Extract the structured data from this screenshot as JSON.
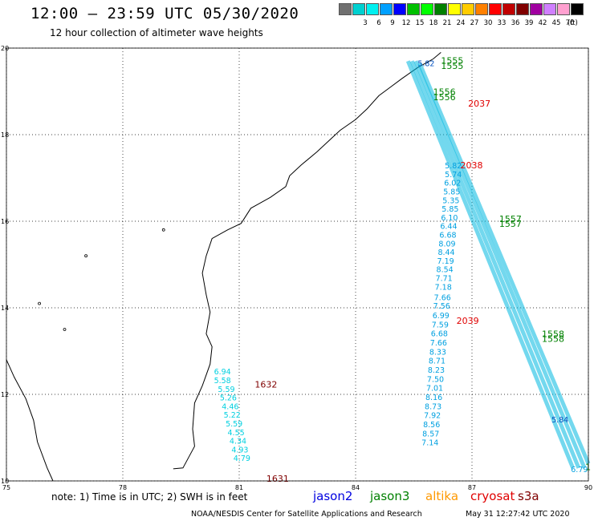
{
  "header": {
    "title": "12:00 — 23:59 UTC 05/30/2020",
    "subtitle": "12 hour collection of altimeter wave heights"
  },
  "scale": {
    "unit": "(ft)",
    "bins": [
      {
        "label": "",
        "color": "#707070"
      },
      {
        "label": "3",
        "color": "#00d0d0"
      },
      {
        "label": "6",
        "color": "#00f0f0"
      },
      {
        "label": "9",
        "color": "#00a0ff"
      },
      {
        "label": "12",
        "color": "#0000ff"
      },
      {
        "label": "15",
        "color": "#00c000"
      },
      {
        "label": "18",
        "color": "#00ff00"
      },
      {
        "label": "21",
        "color": "#008000"
      },
      {
        "label": "24",
        "color": "#ffff00"
      },
      {
        "label": "27",
        "color": "#ffcc00"
      },
      {
        "label": "30",
        "color": "#ff8000"
      },
      {
        "label": "33",
        "color": "#ff0000"
      },
      {
        "label": "36",
        "color": "#c00000"
      },
      {
        "label": "39",
        "color": "#800000"
      },
      {
        "label": "42",
        "color": "#a000a0"
      },
      {
        "label": "45",
        "color": "#d080ff"
      },
      {
        "label": "70",
        "color": "#ffa0d0"
      },
      {
        "label": "",
        "color": "#000000"
      }
    ]
  },
  "map": {
    "lon_range": [
      75,
      90
    ],
    "lat_range": [
      10,
      20
    ],
    "lon_ticks": [
      "75",
      "78",
      "81",
      "84",
      "87",
      "90"
    ],
    "lat_ticks": [
      "20",
      "18",
      "16",
      "14",
      "12",
      "10"
    ],
    "grid": true
  },
  "track_labels": [
    {
      "text": "1555",
      "lon": 86.2,
      "lat": 19.64,
      "color": "#008000"
    },
    {
      "text": "1555",
      "lon": 86.2,
      "lat": 19.52,
      "color": "#008000"
    },
    {
      "text": "1556",
      "lon": 86.0,
      "lat": 18.92,
      "color": "#008000"
    },
    {
      "text": "1556",
      "lon": 86.0,
      "lat": 18.8,
      "color": "#008000"
    },
    {
      "text": "2037",
      "lon": 86.9,
      "lat": 18.65,
      "color": "#e00000"
    },
    {
      "text": "2038",
      "lon": 86.7,
      "lat": 17.22,
      "color": "#e00000"
    },
    {
      "text": "1557",
      "lon": 87.7,
      "lat": 15.98,
      "color": "#008000"
    },
    {
      "text": "1557",
      "lon": 87.7,
      "lat": 15.87,
      "color": "#008000"
    },
    {
      "text": "2039",
      "lon": 86.6,
      "lat": 13.63,
      "color": "#e00000"
    },
    {
      "text": "1558",
      "lon": 88.8,
      "lat": 13.32,
      "color": "#008000"
    },
    {
      "text": "1558",
      "lon": 88.8,
      "lat": 13.21,
      "color": "#008000"
    },
    {
      "text": "1632",
      "lon": 81.4,
      "lat": 12.16,
      "color": "#800000"
    },
    {
      "text": "1631",
      "lon": 81.7,
      "lat": 9.98,
      "color": "#800000"
    },
    {
      "text": "1",
      "lon": 89.92,
      "lat": 10.25,
      "color": "#008000"
    }
  ],
  "swh_values": [
    {
      "text": "6.94",
      "lon": 80.35,
      "lat": 12.46,
      "color": "#00d0e0"
    },
    {
      "text": "5.58",
      "lon": 80.35,
      "lat": 12.26,
      "color": "#00d0e0"
    },
    {
      "text": "5.59",
      "lon": 80.45,
      "lat": 12.06,
      "color": "#00d0e0"
    },
    {
      "text": "5.26",
      "lon": 80.5,
      "lat": 11.86,
      "color": "#00d0e0"
    },
    {
      "text": "4.46",
      "lon": 80.55,
      "lat": 11.66,
      "color": "#00d0e0"
    },
    {
      "text": "5.22",
      "lon": 80.6,
      "lat": 11.46,
      "color": "#00d0e0"
    },
    {
      "text": "5.59",
      "lon": 80.65,
      "lat": 11.26,
      "color": "#00d0e0"
    },
    {
      "text": "4.55",
      "lon": 80.7,
      "lat": 11.06,
      "color": "#00d0e0"
    },
    {
      "text": "4.34",
      "lon": 80.75,
      "lat": 10.86,
      "color": "#00d0e0"
    },
    {
      "text": "4.93",
      "lon": 80.8,
      "lat": 10.66,
      "color": "#00d0e0"
    },
    {
      "text": "4.79",
      "lon": 80.85,
      "lat": 10.46,
      "color": "#00d0e0"
    },
    {
      "text": "5.82",
      "lon": 86.3,
      "lat": 17.22,
      "color": "#00a0e0"
    },
    {
      "text": "5.74",
      "lon": 86.3,
      "lat": 17.02,
      "color": "#00a0e0"
    },
    {
      "text": "6.02",
      "lon": 86.28,
      "lat": 16.82,
      "color": "#00a0e0"
    },
    {
      "text": "5.85",
      "lon": 86.26,
      "lat": 16.62,
      "color": "#00a0e0"
    },
    {
      "text": "5.35",
      "lon": 86.24,
      "lat": 16.42,
      "color": "#00a0e0"
    },
    {
      "text": "5.85",
      "lon": 86.22,
      "lat": 16.22,
      "color": "#00a0e0"
    },
    {
      "text": "6.10",
      "lon": 86.2,
      "lat": 16.02,
      "color": "#00a0e0"
    },
    {
      "text": "6.44",
      "lon": 86.18,
      "lat": 15.82,
      "color": "#00a0e0"
    },
    {
      "text": "6.68",
      "lon": 86.16,
      "lat": 15.62,
      "color": "#00a0e0"
    },
    {
      "text": "8.09",
      "lon": 86.14,
      "lat": 15.42,
      "color": "#00a0e0"
    },
    {
      "text": "8.44",
      "lon": 86.12,
      "lat": 15.22,
      "color": "#00a0e0"
    },
    {
      "text": "7.19",
      "lon": 86.1,
      "lat": 15.02,
      "color": "#00a0e0"
    },
    {
      "text": "8.54",
      "lon": 86.08,
      "lat": 14.82,
      "color": "#00a0e0"
    },
    {
      "text": "7.71",
      "lon": 86.06,
      "lat": 14.62,
      "color": "#00a0e0"
    },
    {
      "text": "7.18",
      "lon": 86.04,
      "lat": 14.42,
      "color": "#00a0e0"
    },
    {
      "text": "7.66",
      "lon": 86.02,
      "lat": 14.18,
      "color": "#00a0e0"
    },
    {
      "text": "7.56",
      "lon": 86.0,
      "lat": 13.98,
      "color": "#00a0e0"
    },
    {
      "text": "6.99",
      "lon": 85.98,
      "lat": 13.76,
      "color": "#00a0e0"
    },
    {
      "text": "7.59",
      "lon": 85.96,
      "lat": 13.55,
      "color": "#00a0e0"
    },
    {
      "text": "6.68",
      "lon": 85.94,
      "lat": 13.34,
      "color": "#00a0e0"
    },
    {
      "text": "7.66",
      "lon": 85.92,
      "lat": 13.13,
      "color": "#00a0e0"
    },
    {
      "text": "8.33",
      "lon": 85.9,
      "lat": 12.92,
      "color": "#00a0e0"
    },
    {
      "text": "8.71",
      "lon": 85.88,
      "lat": 12.71,
      "color": "#00a0e0"
    },
    {
      "text": "8.23",
      "lon": 85.86,
      "lat": 12.5,
      "color": "#00a0e0"
    },
    {
      "text": "7.50",
      "lon": 85.84,
      "lat": 12.29,
      "color": "#00a0e0"
    },
    {
      "text": "7.01",
      "lon": 85.82,
      "lat": 12.08,
      "color": "#00a0e0"
    },
    {
      "text": "8.16",
      "lon": 85.8,
      "lat": 11.87,
      "color": "#00a0e0"
    },
    {
      "text": "8.73",
      "lon": 85.78,
      "lat": 11.66,
      "color": "#00a0e0"
    },
    {
      "text": "7.92",
      "lon": 85.76,
      "lat": 11.45,
      "color": "#00a0e0"
    },
    {
      "text": "8.56",
      "lon": 85.74,
      "lat": 11.24,
      "color": "#00a0e0"
    },
    {
      "text": "8.57",
      "lon": 85.72,
      "lat": 11.03,
      "color": "#00a0e0"
    },
    {
      "text": "7.14",
      "lon": 85.7,
      "lat": 10.82,
      "color": "#00a0e0"
    },
    {
      "text": "5.82",
      "lon": 85.6,
      "lat": 19.58,
      "color": "#0050c0"
    },
    {
      "text": "5.84",
      "lon": 89.05,
      "lat": 11.35,
      "color": "#0050c0"
    },
    {
      "text": "6.79",
      "lon": 89.55,
      "lat": 10.2,
      "color": "#00a0e0"
    }
  ],
  "legend": {
    "note": "note: 1) Time is in UTC; 2) SWH is in feet",
    "items": [
      {
        "label": "jason2",
        "color": "#0000e0"
      },
      {
        "label": "jason3",
        "color": "#008000"
      },
      {
        "label": "altika",
        "color": "#ff9900"
      },
      {
        "label": "cryosat",
        "color": "#e00000"
      },
      {
        "label": "s3a",
        "color": "#800000"
      }
    ]
  },
  "footer": {
    "source": "NOAA/NESDIS Center for Satellite Applications and Research",
    "timestamp": "May 31 12:27:42 UTC 2020"
  }
}
